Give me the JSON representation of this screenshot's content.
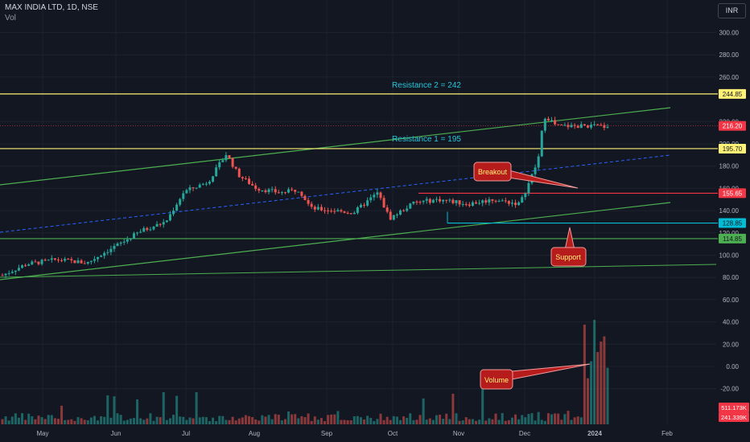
{
  "header": {
    "title": "MAX INDIA LTD, 1D, NSE",
    "volume_label": "Vol",
    "currency": "INR"
  },
  "chart_data": {
    "type": "candlestick",
    "symbol": "MAX INDIA LTD",
    "interval": "1D",
    "exchange": "NSE",
    "price_axis": {
      "ticks": [
        "300.00",
        "280.00",
        "260.00",
        "220.00",
        "200.00",
        "180.00",
        "160.00",
        "140.00",
        "120.00",
        "100.00",
        "80.00",
        "60.00",
        "40.00",
        "20.00",
        "0.00",
        "-20.00"
      ],
      "ylim": [
        -40,
        320
      ]
    },
    "time_axis": {
      "ticks": [
        "May",
        "Jun",
        "Jul",
        "Aug",
        "Sep",
        "Oct",
        "Nov",
        "Dec",
        "2024",
        "Feb"
      ]
    },
    "horizontal_levels": [
      {
        "label": "244.85",
        "value": 244.85,
        "color": "#fff176"
      },
      {
        "label": "195.70",
        "value": 195.7,
        "color": "#fff176"
      },
      {
        "label": "155.65",
        "value": 155.65,
        "color": "#f23645"
      },
      {
        "label": "128.85",
        "value": 128.85,
        "color": "#00bcd4"
      },
      {
        "label": "114.85",
        "value": 114.85,
        "color": "#4caf50"
      }
    ],
    "last_price": {
      "label": "216.20",
      "value": 216.2,
      "color": "#f23645"
    },
    "volume_labels": [
      {
        "label": "511.173K",
        "color": "#f23645"
      },
      {
        "label": "241.339K",
        "color": "#f23645"
      }
    ],
    "annotations": {
      "resistance2": "Resistance 2 = 242",
      "resistance1": "Resistance 1 = 195",
      "breakout": "Breakout",
      "support": "Support",
      "volume": "Volume"
    },
    "colors": {
      "up": "#26a69a",
      "down": "#ef5350",
      "trendline": "#4caf50",
      "midline": "#2962ff"
    },
    "price_path": [
      {
        "t": 0,
        "p": 82
      },
      {
        "t": 0.04,
        "p": 92
      },
      {
        "t": 0.09,
        "p": 96
      },
      {
        "t": 0.14,
        "p": 93
      },
      {
        "t": 0.17,
        "p": 103
      },
      {
        "t": 0.2,
        "p": 112
      },
      {
        "t": 0.23,
        "p": 122
      },
      {
        "t": 0.27,
        "p": 130
      },
      {
        "t": 0.3,
        "p": 157
      },
      {
        "t": 0.34,
        "p": 166
      },
      {
        "t": 0.37,
        "p": 191
      },
      {
        "t": 0.39,
        "p": 172
      },
      {
        "t": 0.42,
        "p": 160
      },
      {
        "t": 0.46,
        "p": 156
      },
      {
        "t": 0.49,
        "p": 159
      },
      {
        "t": 0.51,
        "p": 142
      },
      {
        "t": 0.55,
        "p": 140
      },
      {
        "t": 0.58,
        "p": 138
      },
      {
        "t": 0.62,
        "p": 156
      },
      {
        "t": 0.64,
        "p": 133
      },
      {
        "t": 0.68,
        "p": 147
      },
      {
        "t": 0.72,
        "p": 150
      },
      {
        "t": 0.77,
        "p": 146
      },
      {
        "t": 0.81,
        "p": 150
      },
      {
        "t": 0.855,
        "p": 146
      },
      {
        "t": 0.87,
        "p": 165
      },
      {
        "t": 0.885,
        "p": 185
      },
      {
        "t": 0.895,
        "p": 225
      },
      {
        "t": 0.905,
        "p": 222
      },
      {
        "t": 0.915,
        "p": 216
      }
    ]
  }
}
